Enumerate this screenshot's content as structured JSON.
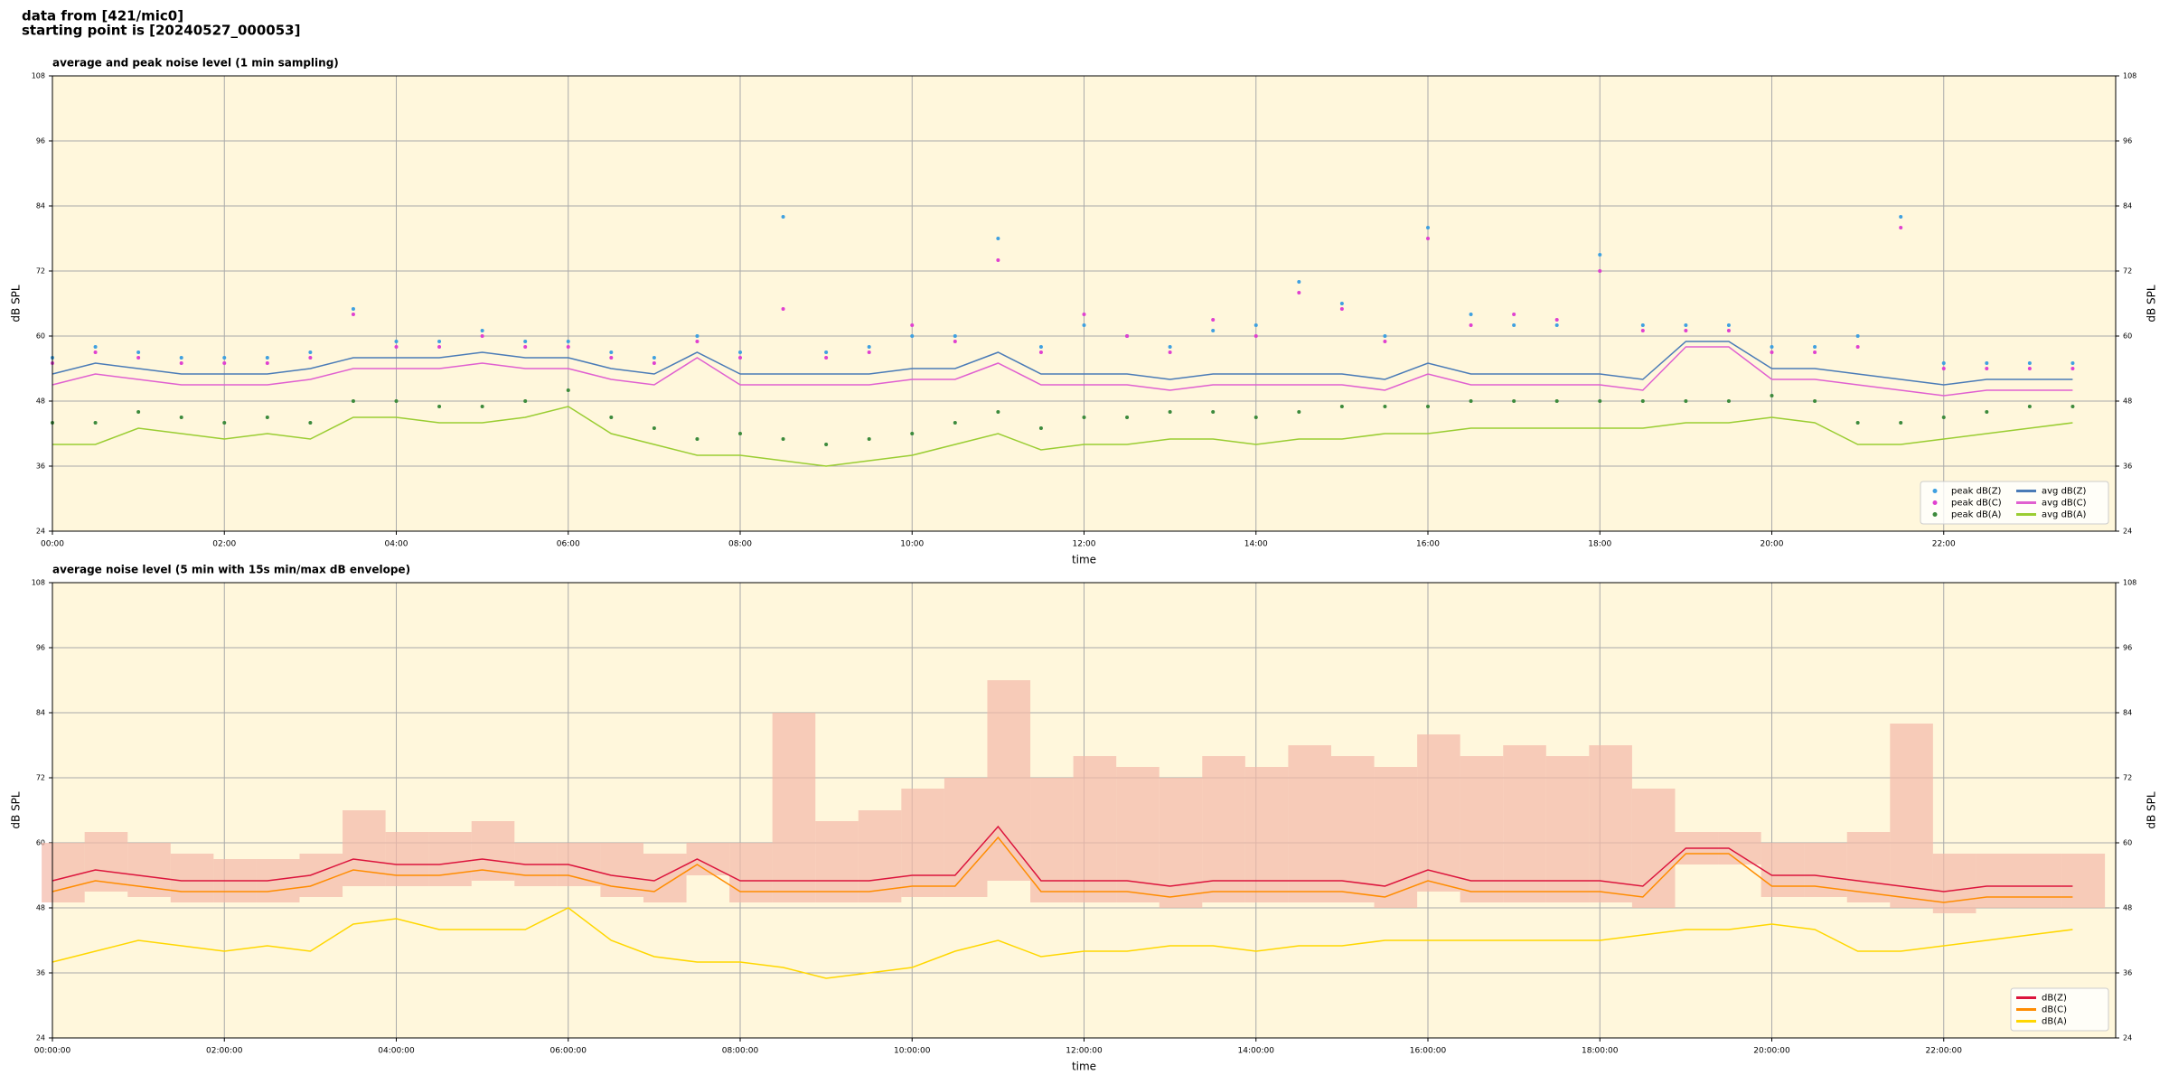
{
  "header": {
    "lines": [
      "data from [421/mic0]",
      "starting point is [20240527_000053]"
    ]
  },
  "chart_data": [
    {
      "type": "line",
      "title": "average and peak noise level (1 min sampling)",
      "xlabel": "time",
      "ylabel": "dB SPL",
      "xlim": [
        0,
        24
      ],
      "ylim": [
        24,
        108
      ],
      "yticks": [
        24,
        36,
        48,
        60,
        72,
        84,
        96,
        108
      ],
      "right_ticks": true,
      "grid": true,
      "legend": "lower right",
      "background": "#fff7dc",
      "xticks": [
        {
          "value": 0,
          "label": "00:00"
        },
        {
          "value": 2,
          "label": "02:00"
        },
        {
          "value": 4,
          "label": "04:00"
        },
        {
          "value": 6,
          "label": "06:00"
        },
        {
          "value": 8,
          "label": "08:00"
        },
        {
          "value": 10,
          "label": "10:00"
        },
        {
          "value": 12,
          "label": "12:00"
        },
        {
          "value": 14,
          "label": "14:00"
        },
        {
          "value": 16,
          "label": "16:00"
        },
        {
          "value": 18,
          "label": "18:00"
        },
        {
          "value": 20,
          "label": "20:00"
        },
        {
          "value": 22,
          "label": "22:00"
        }
      ],
      "x": [
        0,
        0.5,
        1,
        1.5,
        2,
        2.5,
        3,
        3.5,
        4,
        4.5,
        5,
        5.5,
        6,
        6.5,
        7,
        7.5,
        8,
        8.5,
        9,
        9.5,
        10,
        10.5,
        11,
        11.5,
        12,
        12.5,
        13,
        13.5,
        14,
        14.5,
        15,
        15.5,
        16,
        16.5,
        17,
        17.5,
        18,
        18.5,
        19,
        19.5,
        20,
        20.5,
        21,
        21.5,
        22,
        22.5,
        23,
        23.5
      ],
      "series": [
        {
          "name": "peak dB(Z)",
          "kind": "scatter",
          "color": "#3fa0e0",
          "values": [
            56,
            58,
            57,
            56,
            56,
            56,
            57,
            65,
            59,
            59,
            61,
            59,
            59,
            57,
            56,
            60,
            57,
            82,
            57,
            58,
            60,
            60,
            78,
            58,
            62,
            60,
            58,
            61,
            62,
            70,
            66,
            60,
            80,
            64,
            62,
            62,
            75,
            62,
            62,
            62,
            58,
            58,
            60,
            82,
            55,
            55,
            55,
            55
          ]
        },
        {
          "name": "peak dB(C)",
          "kind": "scatter",
          "color": "#e040d0",
          "values": [
            55,
            57,
            56,
            55,
            55,
            55,
            56,
            64,
            58,
            58,
            60,
            58,
            58,
            56,
            55,
            59,
            56,
            65,
            56,
            57,
            62,
            59,
            74,
            57,
            64,
            60,
            57,
            63,
            60,
            68,
            65,
            59,
            78,
            62,
            64,
            63,
            72,
            61,
            61,
            61,
            57,
            57,
            58,
            80,
            54,
            54,
            54,
            54
          ]
        },
        {
          "name": "peak dB(A)",
          "kind": "scatter",
          "color": "#3c8a3c",
          "values": [
            44,
            44,
            46,
            45,
            44,
            45,
            44,
            48,
            48,
            47,
            47,
            48,
            50,
            45,
            43,
            41,
            42,
            41,
            40,
            41,
            42,
            44,
            46,
            43,
            45,
            45,
            46,
            46,
            45,
            46,
            47,
            47,
            47,
            48,
            48,
            48,
            48,
            48,
            48,
            48,
            49,
            48,
            44,
            44,
            45,
            46,
            47,
            47
          ]
        },
        {
          "name": "avg dB(Z)",
          "kind": "line",
          "color": "#4a7bb7",
          "values": [
            53,
            55,
            54,
            53,
            53,
            53,
            54,
            56,
            56,
            56,
            57,
            56,
            56,
            54,
            53,
            57,
            53,
            53,
            53,
            53,
            54,
            54,
            57,
            53,
            53,
            53,
            52,
            53,
            53,
            53,
            53,
            52,
            55,
            53,
            53,
            53,
            53,
            52,
            59,
            59,
            54,
            54,
            53,
            52,
            51,
            52,
            52,
            52
          ]
        },
        {
          "name": "avg dB(C)",
          "kind": "line",
          "color": "#e060d0",
          "values": [
            51,
            53,
            52,
            51,
            51,
            51,
            52,
            54,
            54,
            54,
            55,
            54,
            54,
            52,
            51,
            56,
            51,
            51,
            51,
            51,
            52,
            52,
            55,
            51,
            51,
            51,
            50,
            51,
            51,
            51,
            51,
            50,
            53,
            51,
            51,
            51,
            51,
            50,
            58,
            58,
            52,
            52,
            51,
            50,
            49,
            50,
            50,
            50
          ]
        },
        {
          "name": "avg dB(A)",
          "kind": "line",
          "color": "#9acd32",
          "values": [
            40,
            40,
            43,
            42,
            41,
            42,
            41,
            45,
            45,
            44,
            44,
            45,
            47,
            42,
            40,
            38,
            38,
            37,
            36,
            37,
            38,
            40,
            42,
            39,
            40,
            40,
            41,
            41,
            40,
            41,
            41,
            42,
            42,
            43,
            43,
            43,
            43,
            43,
            44,
            44,
            45,
            44,
            40,
            40,
            41,
            42,
            43,
            44
          ]
        }
      ]
    },
    {
      "type": "line",
      "title": "average noise level (5 min with 15s min/max dB envelope)",
      "xlabel": "time",
      "ylabel": "dB SPL",
      "xlim": [
        0,
        24
      ],
      "ylim": [
        24,
        108
      ],
      "yticks": [
        24,
        36,
        48,
        60,
        72,
        84,
        96,
        108
      ],
      "right_ticks": true,
      "grid": true,
      "legend": "lower right",
      "background": "#fff7dc",
      "xticks": [
        {
          "value": 0,
          "label": "00:00:00"
        },
        {
          "value": 2,
          "label": "02:00:00"
        },
        {
          "value": 4,
          "label": "04:00:00"
        },
        {
          "value": 6,
          "label": "06:00:00"
        },
        {
          "value": 8,
          "label": "08:00:00"
        },
        {
          "value": 10,
          "label": "10:00:00"
        },
        {
          "value": 12,
          "label": "12:00:00"
        },
        {
          "value": 14,
          "label": "14:00:00"
        },
        {
          "value": 16,
          "label": "16:00:00"
        },
        {
          "value": 18,
          "label": "18:00:00"
        },
        {
          "value": 20,
          "label": "20:00:00"
        },
        {
          "value": 22,
          "label": "22:00:00"
        }
      ],
      "x": [
        0,
        0.5,
        1,
        1.5,
        2,
        2.5,
        3,
        3.5,
        4,
        4.5,
        5,
        5.5,
        6,
        6.5,
        7,
        7.5,
        8,
        8.5,
        9,
        9.5,
        10,
        10.5,
        11,
        11.5,
        12,
        12.5,
        13,
        13.5,
        14,
        14.5,
        15,
        15.5,
        16,
        16.5,
        17,
        17.5,
        18,
        18.5,
        19,
        19.5,
        20,
        20.5,
        21,
        21.5,
        22,
        22.5,
        23,
        23.5
      ],
      "envelope": {
        "color": "#f4b8a8",
        "low": [
          49,
          51,
          50,
          49,
          49,
          49,
          50,
          52,
          52,
          52,
          53,
          52,
          52,
          50,
          49,
          54,
          49,
          49,
          49,
          49,
          50,
          50,
          53,
          49,
          49,
          49,
          48,
          49,
          49,
          49,
          49,
          48,
          51,
          49,
          49,
          49,
          49,
          48,
          56,
          56,
          50,
          50,
          49,
          48,
          47,
          48,
          48,
          48
        ],
        "high": [
          60,
          62,
          60,
          58,
          57,
          57,
          58,
          66,
          62,
          62,
          64,
          60,
          60,
          60,
          58,
          60,
          60,
          84,
          64,
          66,
          70,
          72,
          90,
          72,
          76,
          74,
          72,
          76,
          74,
          78,
          76,
          74,
          80,
          76,
          78,
          76,
          78,
          70,
          62,
          62,
          60,
          60,
          62,
          82,
          58,
          58,
          58,
          58
        ]
      },
      "series": [
        {
          "name": "dB(Z)",
          "kind": "line",
          "color": "#dc143c",
          "values": [
            53,
            55,
            54,
            53,
            53,
            53,
            54,
            57,
            56,
            56,
            57,
            56,
            56,
            54,
            53,
            57,
            53,
            53,
            53,
            53,
            54,
            54,
            63,
            53,
            53,
            53,
            52,
            53,
            53,
            53,
            53,
            52,
            55,
            53,
            53,
            53,
            53,
            52,
            59,
            59,
            54,
            54,
            53,
            52,
            51,
            52,
            52,
            52
          ]
        },
        {
          "name": "dB(C)",
          "kind": "line",
          "color": "#ff8c00",
          "values": [
            51,
            53,
            52,
            51,
            51,
            51,
            52,
            55,
            54,
            54,
            55,
            54,
            54,
            52,
            51,
            56,
            51,
            51,
            51,
            51,
            52,
            52,
            61,
            51,
            51,
            51,
            50,
            51,
            51,
            51,
            51,
            50,
            53,
            51,
            51,
            51,
            51,
            50,
            58,
            58,
            52,
            52,
            51,
            50,
            49,
            50,
            50,
            50
          ]
        },
        {
          "name": "dB(A)",
          "kind": "line",
          "color": "#ffd700",
          "values": [
            38,
            40,
            42,
            41,
            40,
            41,
            40,
            45,
            46,
            44,
            44,
            44,
            48,
            42,
            39,
            38,
            38,
            37,
            35,
            36,
            37,
            40,
            42,
            39,
            40,
            40,
            41,
            41,
            40,
            41,
            41,
            42,
            42,
            42,
            42,
            42,
            42,
            43,
            44,
            44,
            45,
            44,
            40,
            40,
            41,
            42,
            43,
            44
          ]
        }
      ]
    }
  ]
}
